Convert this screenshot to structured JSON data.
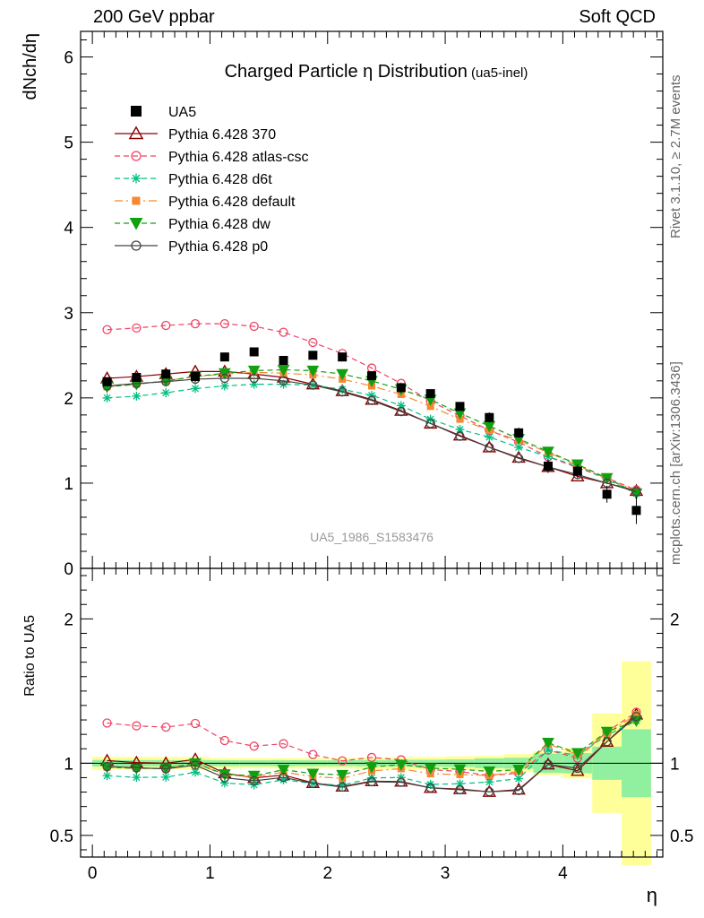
{
  "header": {
    "left": "200 GeV ppbar",
    "right": "Soft QCD"
  },
  "side_labels": {
    "rivet": "Rivet 3.1.10, ≥ 2.7M events",
    "mcplots": "mcplots.cern.ch [arXiv:1306.3436]"
  },
  "chart_data": {
    "type": "scatter",
    "title": "Charged Particle η Distribution",
    "title_note": "(ua5-inel)",
    "ylabel": "dNch/dη",
    "xlabel": "η",
    "xlim": [
      -0.1,
      4.85
    ],
    "ylim": [
      0,
      6.3
    ],
    "analysis_label": "UA5_1986_S1583476",
    "x": [
      0.125,
      0.375,
      0.625,
      0.875,
      1.125,
      1.375,
      1.625,
      1.875,
      2.125,
      2.375,
      2.625,
      2.875,
      3.125,
      3.375,
      3.625,
      3.875,
      4.125,
      4.375,
      4.625
    ],
    "x_ticks": [
      0,
      1,
      2,
      3,
      4
    ],
    "y_ticks": [
      0,
      1,
      2,
      3,
      4,
      5,
      6
    ],
    "data": {
      "name": "UA5",
      "values": [
        2.19,
        2.24,
        2.28,
        2.25,
        2.48,
        2.54,
        2.44,
        2.5,
        2.48,
        2.26,
        2.12,
        2.05,
        1.9,
        1.77,
        1.59,
        1.2,
        1.14,
        0.87,
        0.68
      ],
      "uncertainty_inner": [
        0.05,
        0.05,
        0.05,
        0.05,
        0.05,
        0.05,
        0.05,
        0.05,
        0.05,
        0.05,
        0.05,
        0.05,
        0.05,
        0.06,
        0.06,
        0.08,
        0.08,
        0.1,
        0.16
      ],
      "uncertainty_outer": [
        0.1,
        0.1,
        0.1,
        0.1,
        0.09,
        0.09,
        0.09,
        0.09,
        0.09,
        0.09,
        0.09,
        0.09,
        0.09,
        0.09,
        0.1,
        0.1,
        0.12,
        0.3,
        0.48
      ],
      "color": "#000000"
    },
    "series": [
      {
        "name": "Pythia 6.428 370",
        "color": "#8b0000",
        "dash": "",
        "marker": "triangle",
        "values": [
          2.23,
          2.25,
          2.28,
          2.31,
          2.31,
          2.28,
          2.24,
          2.16,
          2.08,
          1.98,
          1.85,
          1.7,
          1.56,
          1.42,
          1.3,
          1.19,
          1.08,
          1.0,
          0.91
        ]
      },
      {
        "name": "Pythia 6.428 atlas-csc",
        "color": "#ee4466",
        "dash": "6,4",
        "marker": "circle",
        "values": [
          2.8,
          2.82,
          2.85,
          2.87,
          2.87,
          2.84,
          2.77,
          2.65,
          2.52,
          2.35,
          2.17,
          1.96,
          1.79,
          1.62,
          1.48,
          1.31,
          1.18,
          1.06,
          0.92
        ]
      },
      {
        "name": "Pythia 6.428 d6t",
        "color": "#00c080",
        "dash": "6,4",
        "marker": "star",
        "values": [
          2.0,
          2.02,
          2.06,
          2.11,
          2.14,
          2.16,
          2.16,
          2.15,
          2.1,
          2.03,
          1.91,
          1.75,
          1.63,
          1.54,
          1.42,
          1.31,
          1.2,
          1.04,
          0.88
        ]
      },
      {
        "name": "Pythia 6.428 default",
        "color": "#f58830",
        "dash": "9,4,2,4",
        "marker": "square",
        "values": [
          2.13,
          2.16,
          2.2,
          2.25,
          2.28,
          2.3,
          2.29,
          2.27,
          2.22,
          2.14,
          2.04,
          1.9,
          1.75,
          1.62,
          1.5,
          1.36,
          1.21,
          1.05,
          0.91
        ]
      },
      {
        "name": "Pythia 6.428 dw",
        "color": "#10a010",
        "dash": "6,4",
        "marker": "triangle-down",
        "values": [
          2.13,
          2.16,
          2.2,
          2.25,
          2.29,
          2.32,
          2.33,
          2.32,
          2.28,
          2.2,
          2.1,
          1.98,
          1.82,
          1.67,
          1.52,
          1.37,
          1.22,
          1.06,
          0.88
        ]
      },
      {
        "name": "Pythia 6.428 p0",
        "color": "#444444",
        "dash": "",
        "marker": "circle",
        "values": [
          2.14,
          2.17,
          2.19,
          2.22,
          2.23,
          2.23,
          2.2,
          2.15,
          2.07,
          1.97,
          1.84,
          1.7,
          1.55,
          1.42,
          1.29,
          1.19,
          1.1,
          1.0,
          0.9
        ]
      }
    ],
    "ratio": {
      "ylabel": "Ratio to UA5",
      "ylim": [
        0.35,
        2.35
      ],
      "y_ticks": [
        0.5,
        1,
        2
      ],
      "reference": 1
    }
  }
}
